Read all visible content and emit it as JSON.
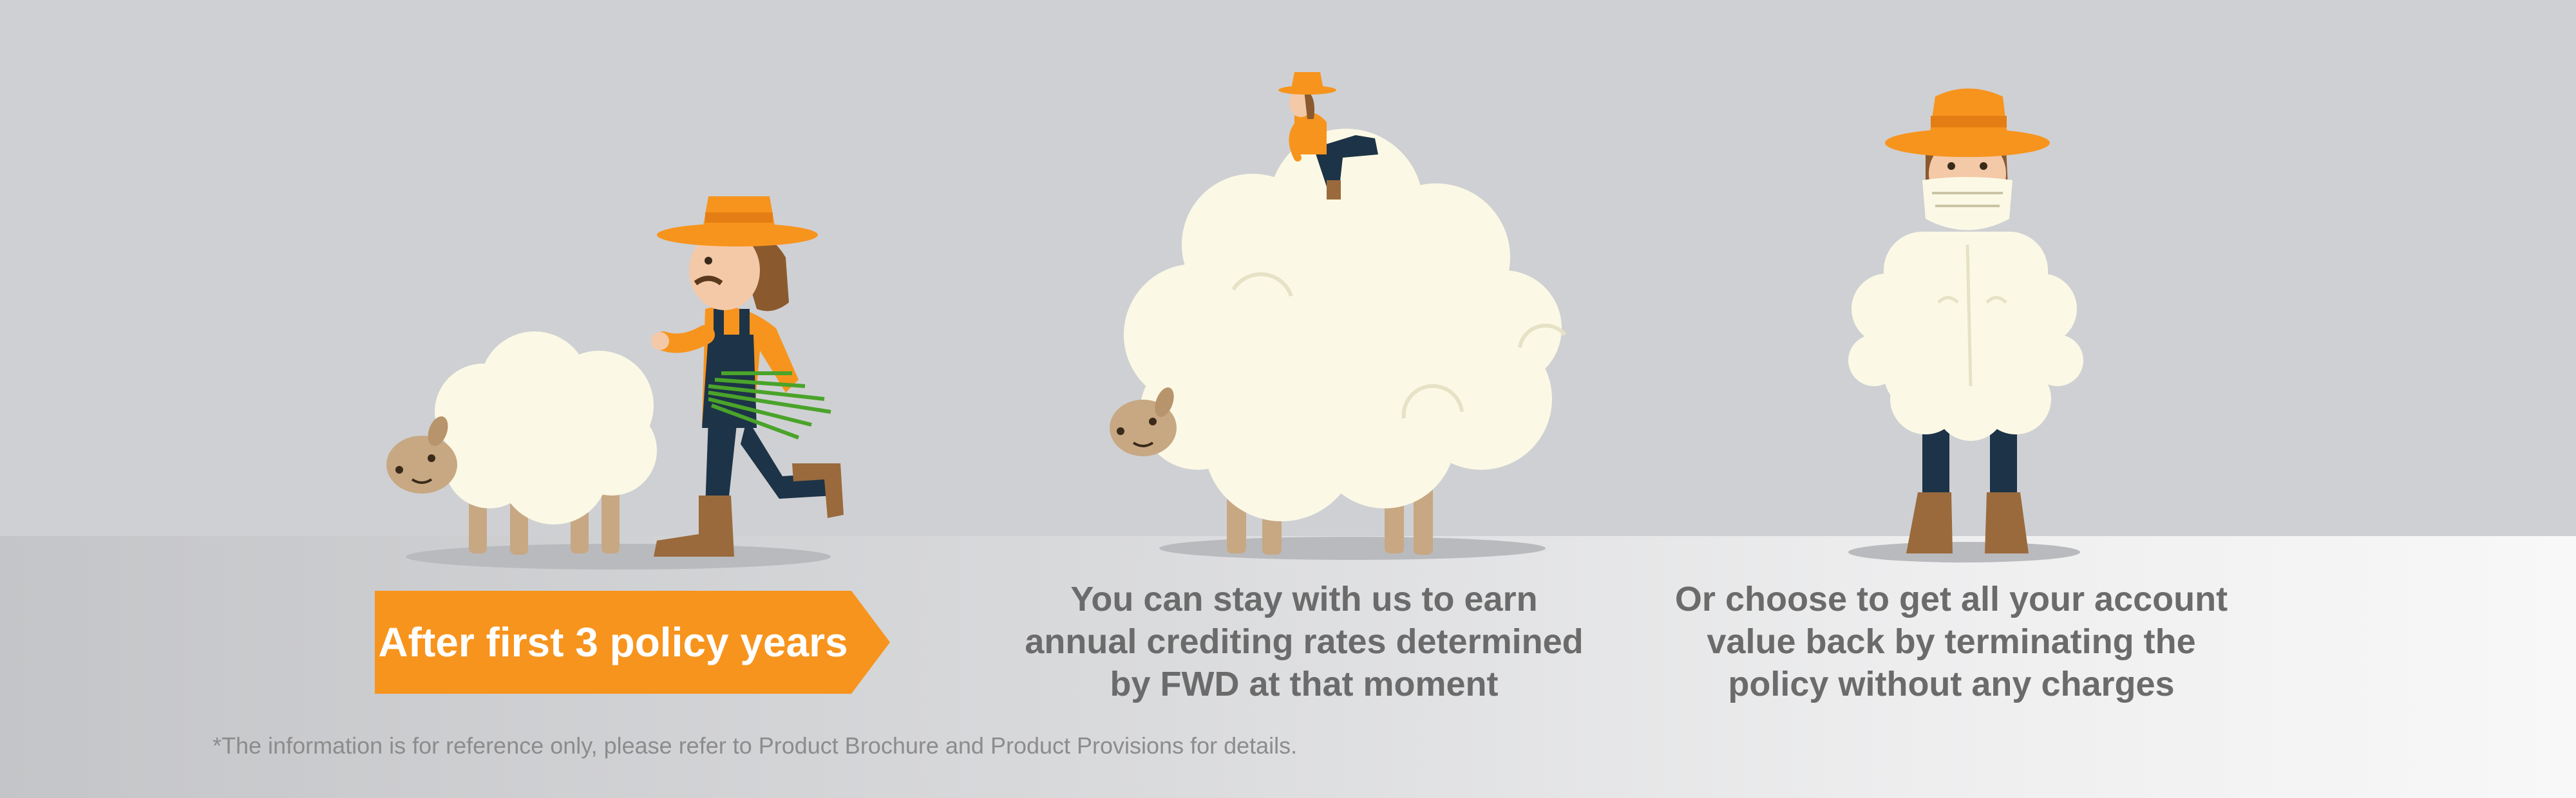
{
  "banner": {
    "label": "After first 3 policy years"
  },
  "captions": {
    "stay": [
      "You can stay with us to earn",
      "annual crediting rates determined",
      "by FWD at that moment"
    ],
    "terminate": [
      "Or choose to get all your account",
      "value back by terminating the",
      "policy without any charges"
    ]
  },
  "disclaimer": "*The information is for reference only, please refer to Product Brochure and Product Provisions for details.",
  "colors": {
    "orange": "#f7941d",
    "wool": "#fbf9e6",
    "caption": "#6b6b6b",
    "background": "#cfd0d3"
  }
}
